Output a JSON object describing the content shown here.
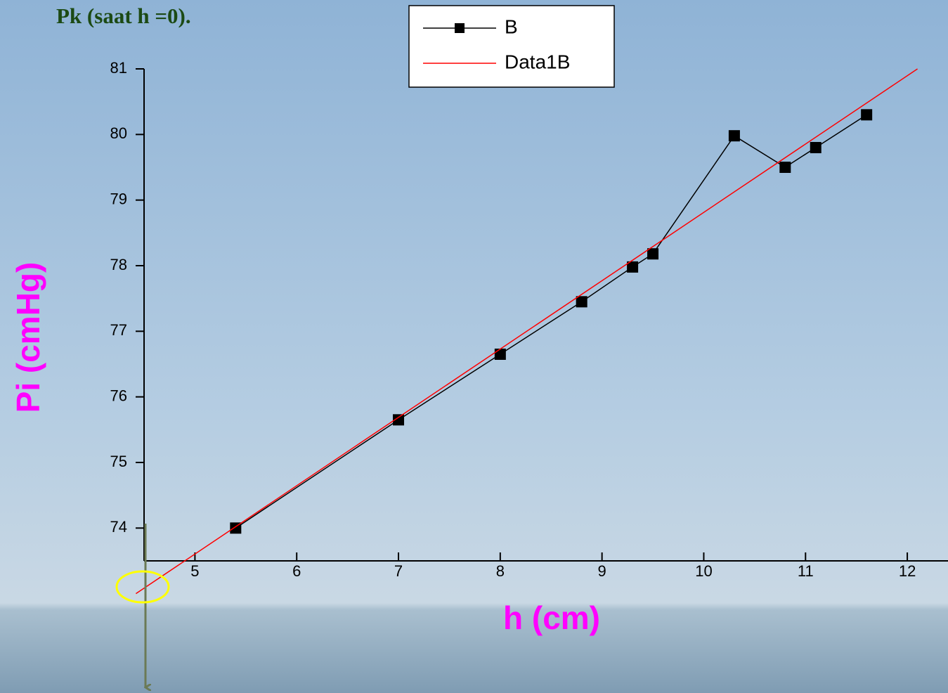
{
  "chart_data": {
    "type": "line",
    "title": "Pk (saat h =0).",
    "xlabel": "h (cm)",
    "ylabel": "Pi (cmHg)",
    "series": [
      {
        "name": "B",
        "color": "#000000",
        "marker": "square",
        "x": [
          5.4,
          7.0,
          8.0,
          8.8,
          9.3,
          9.5,
          10.3,
          10.8,
          11.1,
          11.6
        ],
        "values": [
          74.0,
          75.65,
          76.65,
          77.45,
          77.98,
          78.18,
          79.98,
          79.5,
          79.8,
          80.3
        ]
      },
      {
        "name": "Data1B",
        "color": "#ff0000",
        "x": [
          4.42,
          12.1
        ],
        "values": [
          73.0,
          81.0
        ]
      }
    ],
    "xlim": [
      4.5,
      12.4
    ],
    "ylim": [
      73.5,
      81
    ],
    "xticks": [
      5,
      6,
      7,
      8,
      9,
      10,
      11,
      12
    ],
    "yticks": [
      74,
      75,
      76,
      77,
      78,
      79,
      80,
      81
    ]
  }
}
